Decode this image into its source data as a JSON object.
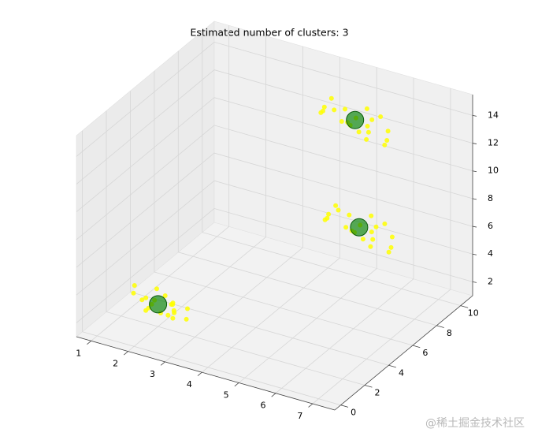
{
  "chart_data": {
    "type": "scatter3d",
    "title": "Estimated number of clusters: 3",
    "xlim": [
      0.6,
      7.6
    ],
    "ylim": [
      -0.5,
      11
    ],
    "zlim": [
      1,
      15.5
    ],
    "xticks": [
      1,
      2,
      3,
      4,
      5,
      6,
      7
    ],
    "yticks": [
      0,
      2,
      4,
      6,
      8,
      10
    ],
    "zticks": [
      2,
      4,
      6,
      8,
      10,
      12,
      14
    ],
    "grid": true,
    "series": [
      {
        "color": "#ffff00",
        "x": [
          1.2,
          1.5,
          1.8,
          2.3,
          2.6,
          1.9,
          2.1,
          2.4,
          1.4,
          2.7,
          2.2,
          1.7,
          2.0,
          2.5,
          1.6,
          2.8,
          2.3,
          1.9,
          2.1,
          2.4,
          4.8,
          5.1,
          5.9,
          6.2,
          5.4,
          4.6,
          5.7,
          6.0,
          5.2,
          4.9,
          5.8,
          6.3,
          5.5,
          5.0,
          6.1,
          5.3,
          4.7,
          5.6,
          6.4,
          5.9,
          4.2,
          4.5,
          5.3,
          5.6,
          4.8,
          4.0,
          5.1,
          5.4,
          4.6,
          4.3,
          5.2,
          5.7,
          4.9,
          4.4,
          5.5,
          4.7,
          4.1,
          5.0,
          5.8,
          5.3
        ],
        "y": [
          2.5,
          2.2,
          1.6,
          2.4,
          1.5,
          2.9,
          1.4,
          2.0,
          1.8,
          2.3,
          2.6,
          1.9,
          1.2,
          1.7,
          2.7,
          1.9,
          1.3,
          2.2,
          2.8,
          1.6,
          7.6,
          8.4,
          7.9,
          8.6,
          7.2,
          8.1,
          8.8,
          7.5,
          8.3,
          7.0,
          7.4,
          8.2,
          9.0,
          7.8,
          7.1,
          8.7,
          8.5,
          7.3,
          7.7,
          8.9,
          9.1,
          9.9,
          9.4,
          10.1,
          8.7,
          9.6,
          10.3,
          9.0,
          9.8,
          8.5,
          8.9,
          9.7,
          10.5,
          9.3,
          8.6,
          10.2,
          10.0,
          8.8,
          9.2,
          10.4
        ],
        "z": [
          3.0,
          2.4,
          3.2,
          2.1,
          2.8,
          2.5,
          3.4,
          1.9,
          3.1,
          2.6,
          2.3,
          2.0,
          2.9,
          3.3,
          1.8,
          2.2,
          2.7,
          3.5,
          2.1,
          2.4,
          7.2,
          6.8,
          6.0,
          5.9,
          7.0,
          6.4,
          6.1,
          6.9,
          5.8,
          7.3,
          6.3,
          5.5,
          6.6,
          7.5,
          6.2,
          6.0,
          7.1,
          6.7,
          5.6,
          6.4,
          13.4,
          12.9,
          12.2,
          12.0,
          13.1,
          12.6,
          12.3,
          13.0,
          12.1,
          13.5,
          12.5,
          11.7,
          12.8,
          13.2,
          12.4,
          12.2,
          13.3,
          12.9,
          11.8,
          12.6
        ]
      },
      {
        "color": "#008000",
        "x": [
          2.0,
          5.5,
          4.9
        ],
        "y": [
          2.0,
          8.0,
          9.5
        ],
        "z": [
          2.6,
          6.5,
          12.7
        ]
      }
    ]
  },
  "watermark": "@稀土掘金技术社区"
}
